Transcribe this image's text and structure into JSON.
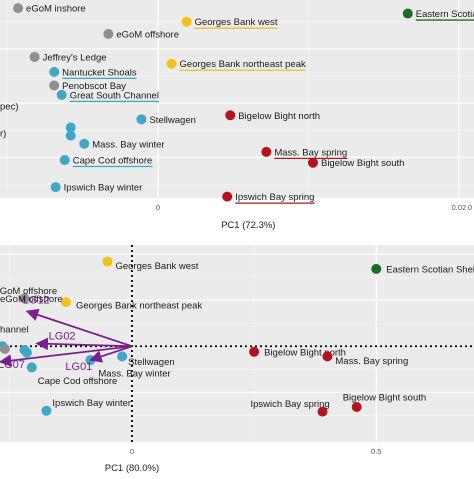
{
  "colors": {
    "grey": "#8f8f8f",
    "yellow": "#f2c21b",
    "green": "#1e6b2a",
    "blue": "#3fa7c8",
    "red": "#b3141f",
    "vector": "#7b1f8f"
  },
  "chart_data": [
    {
      "type": "scatter",
      "xlabel": "PC1 (72.3%)",
      "ylabel": "",
      "xlim": [
        -0.0105,
        0.021
      ],
      "ylim": [
        -4,
        10.6
      ],
      "x_ticks": [
        0,
        0.02
      ],
      "x_tick_labels": [
        "0",
        "0.02"
      ],
      "grid": true,
      "points": [
        {
          "label": "eGoM inshore",
          "x": -0.0093,
          "y": 10.0,
          "group": "grey",
          "underline": false
        },
        {
          "label": "Georges Bank west",
          "x": 0.0019,
          "y": 9.0,
          "group": "yellow",
          "underline": true
        },
        {
          "label": "Eastern Scotian Shelf",
          "x": 0.0166,
          "y": 9.6,
          "group": "green",
          "underline": true
        },
        {
          "label": "eGoM offshore",
          "x": -0.0033,
          "y": 8.1,
          "group": "grey",
          "underline": false
        },
        {
          "label": "Jeffrey's Ledge",
          "x": -0.0082,
          "y": 6.4,
          "group": "grey",
          "underline": false
        },
        {
          "label": "Georges Bank northeast peak",
          "x": 0.0009,
          "y": 5.9,
          "group": "yellow",
          "underline": true
        },
        {
          "label": "Nantucket Shoals",
          "x": -0.0069,
          "y": 5.3,
          "group": "blue",
          "underline": true
        },
        {
          "label": "Penobscot Bay",
          "x": -0.0069,
          "y": 4.3,
          "group": "grey",
          "underline": false
        },
        {
          "label": "Great South Channel",
          "x": -0.0064,
          "y": 3.6,
          "group": "blue",
          "underline": true
        },
        {
          "label": "Bigelow Bight north",
          "x": 0.0048,
          "y": 2.1,
          "group": "red",
          "underline": false
        },
        {
          "label": "Stellwagen",
          "x": -0.0011,
          "y": 1.8,
          "group": "blue",
          "underline": false
        },
        {
          "label": "Mass. Bay winter",
          "x": -0.0049,
          "y": 0.0,
          "group": "blue",
          "underline": false
        },
        {
          "label": "Mass. Bay spring",
          "x": 0.0072,
          "y": -0.6,
          "group": "red",
          "underline": true
        },
        {
          "label": "Bigelow Bight south",
          "x": 0.0103,
          "y": -1.4,
          "group": "red",
          "underline": false
        },
        {
          "label": "Cape Cod offshore",
          "x": -0.0062,
          "y": -1.2,
          "group": "blue",
          "underline": true
        },
        {
          "label": "Ipswich Bay winter",
          "x": -0.0068,
          "y": -3.2,
          "group": "blue",
          "underline": false
        },
        {
          "label": "Ipswich Bay spring",
          "x": 0.0046,
          "y": -3.9,
          "group": "red",
          "underline": true
        },
        {
          "label": "",
          "x": -0.0058,
          "y": 1.2,
          "group": "blue",
          "underline": false
        },
        {
          "label": "",
          "x": -0.0058,
          "y": 0.6,
          "group": "blue",
          "underline": false
        }
      ],
      "edge_text": [
        {
          "text": "pec)",
          "y": 2.8
        },
        {
          "text": "r)",
          "y": 0.8
        }
      ],
      "top_right_tick": "0"
    },
    {
      "type": "scatter",
      "xlabel": "PC1 (80.0%)",
      "ylabel": "",
      "xlim": [
        -0.27,
        0.7
      ],
      "ylim": [
        -0.52,
        0.55
      ],
      "x_ticks": [
        0,
        0.5
      ],
      "x_tick_labels": [
        "0",
        "0.5"
      ],
      "grid": true,
      "reference_lines": {
        "x": 0,
        "y": 0
      },
      "points": [
        {
          "label": "Georges Bank west",
          "x": -0.05,
          "y": 0.46,
          "group": "yellow"
        },
        {
          "label": "Eastern Scotian Shelf",
          "x": 0.5,
          "y": 0.42,
          "group": "green"
        },
        {
          "label": "eGoM offshore",
          "x": -0.22,
          "y": 0.26,
          "group": "grey"
        },
        {
          "label": "Georges Bank northeast peak",
          "x": -0.135,
          "y": 0.24,
          "group": "yellow"
        },
        {
          "label": "Stellwagen",
          "x": -0.02,
          "y": -0.055,
          "group": "blue"
        },
        {
          "label": "Mass. Bay winter",
          "x": -0.085,
          "y": -0.075,
          "group": "blue"
        },
        {
          "label": "Bigelow Bight north",
          "x": 0.25,
          "y": -0.03,
          "group": "red"
        },
        {
          "label": "Mass. Bay spring",
          "x": 0.4,
          "y": -0.055,
          "group": "red"
        },
        {
          "label": "Cape Cod offshore",
          "x": -0.205,
          "y": -0.115,
          "group": "blue"
        },
        {
          "label": "Bigelow Bight south",
          "x": 0.46,
          "y": -0.33,
          "group": "red"
        },
        {
          "label": "Ipswich Bay winter",
          "x": -0.175,
          "y": -0.35,
          "group": "blue"
        },
        {
          "label": "Ipswich Bay spring",
          "x": 0.39,
          "y": -0.355,
          "group": "red"
        },
        {
          "label": "",
          "x": -0.265,
          "y": 0.0,
          "group": "blue"
        },
        {
          "label": "",
          "x": -0.26,
          "y": -0.015,
          "group": "grey"
        },
        {
          "label": "",
          "x": -0.22,
          "y": -0.02,
          "group": "blue"
        },
        {
          "label": "",
          "x": -0.215,
          "y": -0.035,
          "group": "blue"
        }
      ],
      "vectors": [
        {
          "label": "LG12",
          "x": -0.215,
          "y": 0.19
        },
        {
          "label": "LG02",
          "x": -0.195,
          "y": 0.015
        },
        {
          "label": "LG01",
          "x": -0.085,
          "y": -0.075
        },
        {
          "label": "LG07",
          "x": -0.27,
          "y": -0.085
        }
      ],
      "edge_text": [
        {
          "text": "eGoM offshore",
          "y": 0.26
        },
        {
          "text": "hannel",
          "y": 0.095
        }
      ]
    }
  ]
}
